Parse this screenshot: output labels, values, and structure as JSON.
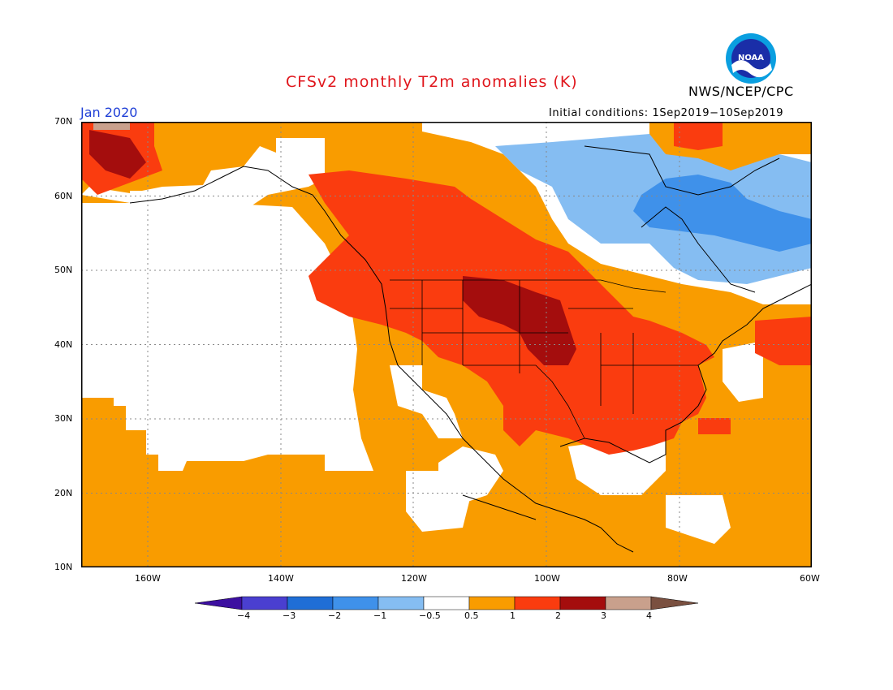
{
  "header": {
    "title": "CFSv2 monthly T2m anomalies (K)",
    "org": "NWS/NCEP/CPC",
    "month": "Jan 2020",
    "initial_conditions": "Initial conditions: 1Sep2019−10Sep2019",
    "logo_text": "NOAA"
  },
  "map": {
    "lat_labels": [
      "70N",
      "60N",
      "50N",
      "40N",
      "30N",
      "20N",
      "10N"
    ],
    "lon_labels": [
      "160W",
      "140W",
      "120W",
      "100W",
      "80W",
      "60W"
    ]
  },
  "legend": {
    "labels": [
      "−4",
      "−3",
      "−2",
      "−1",
      "−0.5",
      "0.5",
      "1",
      "2",
      "3",
      "4"
    ],
    "colors": [
      "#3c0fa0",
      "#4a3fd0",
      "#1f6ed6",
      "#3f91ea",
      "#85bdf2",
      "#ffffff",
      "#f99c00",
      "#fa3c0f",
      "#a40d0d",
      "#c9a08c",
      "#7a5040"
    ]
  },
  "colors": {
    "title": "#e0161c",
    "month": "#1f3fd6",
    "orange_anomaly": "#f99c00",
    "red_anomaly": "#fa3c0f",
    "darkred_anomaly": "#a40d0d",
    "lightblue_anomaly": "#85bdf2",
    "blue_anomaly": "#3f91ea"
  }
}
